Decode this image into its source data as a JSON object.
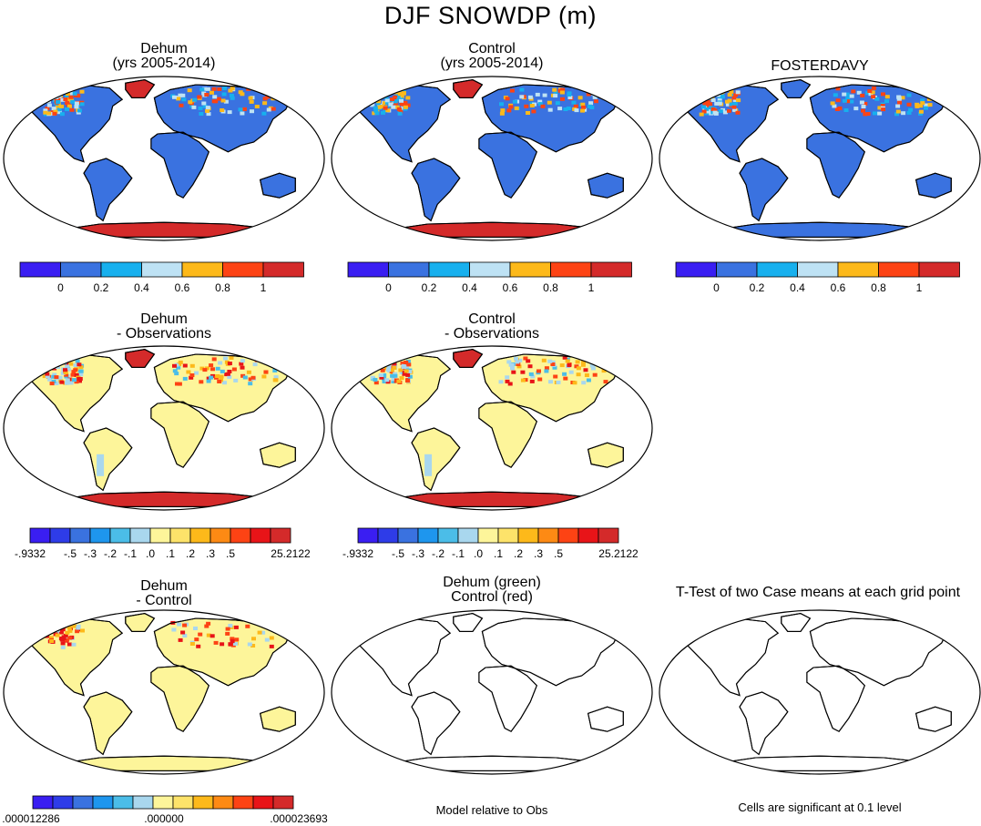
{
  "title": "DJF SNOWDP (m)",
  "colors": {
    "abs": [
      "#3a1ef2",
      "#3a72e0",
      "#17b0ee",
      "#bee2f4",
      "#fdb91a",
      "#fd4314",
      "#d42a2a"
    ],
    "diff": [
      "#3a1ef2",
      "#2e3ce8",
      "#3a72e0",
      "#1e96ee",
      "#4bbde8",
      "#a9d7ee",
      "#fdf59a",
      "#fde36a",
      "#fdb91a",
      "#fd8a14",
      "#fd4314",
      "#e81418",
      "#d42a2a"
    ],
    "land_low": "#3a72e0",
    "land_diff": "#fdf59a",
    "antarctica_high": "#d42a2a",
    "snow_mid": "#bee2f4"
  },
  "panels": [
    {
      "id": "dehum",
      "title1": "Dehum",
      "title2": "(yrs 2005-2014)",
      "style": "abs"
    },
    {
      "id": "control",
      "title1": "Control",
      "title2": "(yrs 2005-2014)",
      "style": "abs"
    },
    {
      "id": "fosterdavy",
      "title1": "FOSTERDAVY",
      "title2": "",
      "style": "obs"
    },
    {
      "id": "dehum-obs",
      "title1": "Dehum",
      "title2": "- Observations",
      "style": "diff"
    },
    {
      "id": "control-obs",
      "title1": "Control",
      "title2": "- Observations",
      "style": "diff"
    },
    {
      "id": "dehum-control",
      "title1": "Dehum",
      "title2": "- Control",
      "style": "dd"
    },
    {
      "id": "model-rel-obs",
      "title1": "Dehum (green)",
      "title2": "Control (red)",
      "style": "blank"
    },
    {
      "id": "ttest",
      "title1": "T-Test of two Case means at each grid point",
      "title2": "",
      "style": "blank"
    }
  ],
  "colorbars": {
    "abs": {
      "labels": [
        "0",
        "0.2",
        "0.4",
        "0.6",
        "0.8",
        "1"
      ]
    },
    "diff": {
      "labels": [
        "-.9332",
        "-.5",
        "-.3",
        "-.2",
        "-.1",
        ".0",
        ".1",
        ".2",
        ".3",
        ".5",
        "25.2122"
      ]
    },
    "dd": {
      "labels": [
        ".000012286",
        ".000000",
        ".000023693"
      ]
    }
  },
  "notes": {
    "model_relative": "Model relative to Obs",
    "significance": "Cells are significant at 0.1 level"
  }
}
